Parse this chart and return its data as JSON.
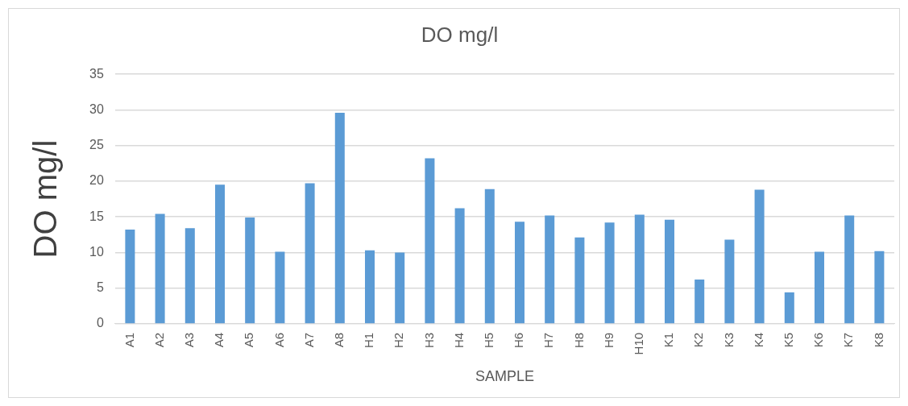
{
  "chart_data": {
    "type": "bar",
    "title": "DO mg/l",
    "xlabel": "SAMPLE",
    "ylabel": "DO mg/l",
    "categories": [
      "A1",
      "A2",
      "A3",
      "A4",
      "A5",
      "A6",
      "A7",
      "A8",
      "H1",
      "H2",
      "H3",
      "H4",
      "H5",
      "H6",
      "H7",
      "H8",
      "H9",
      "H10",
      "K1",
      "K2",
      "K3",
      "K4",
      "K5",
      "K6",
      "K7",
      "K8"
    ],
    "values": [
      13.2,
      15.4,
      13.4,
      19.5,
      14.9,
      10.1,
      19.7,
      29.6,
      10.3,
      10.0,
      23.2,
      16.2,
      18.9,
      14.3,
      15.2,
      12.1,
      14.2,
      15.3,
      14.6,
      6.2,
      11.8,
      18.8,
      4.4,
      10.1,
      15.2,
      10.2
    ],
    "color": "#5b9bd5",
    "ylim": [
      0,
      35
    ],
    "yticks": [
      0,
      5,
      10,
      15,
      20,
      25,
      30,
      35
    ],
    "grid": "y",
    "legend": false
  }
}
